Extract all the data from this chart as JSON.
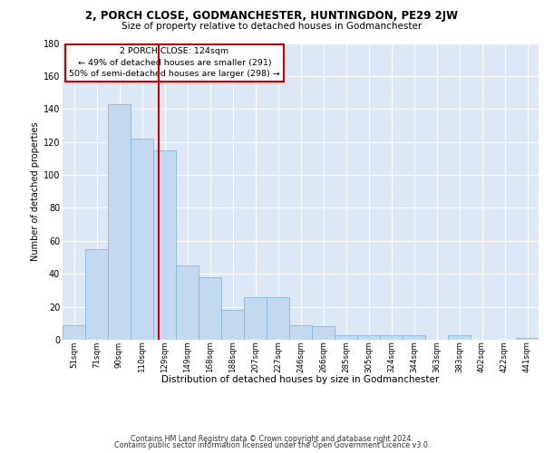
{
  "title1": "2, PORCH CLOSE, GODMANCHESTER, HUNTINGDON, PE29 2JW",
  "title2": "Size of property relative to detached houses in Godmanchester",
  "xlabel": "Distribution of detached houses by size in Godmanchester",
  "ylabel": "Number of detached properties",
  "categories": [
    "51sqm",
    "71sqm",
    "90sqm",
    "110sqm",
    "129sqm",
    "149sqm",
    "168sqm",
    "188sqm",
    "207sqm",
    "227sqm",
    "246sqm",
    "266sqm",
    "285sqm",
    "305sqm",
    "324sqm",
    "344sqm",
    "363sqm",
    "383sqm",
    "402sqm",
    "422sqm",
    "441sqm"
  ],
  "values": [
    9,
    55,
    143,
    122,
    115,
    45,
    38,
    18,
    26,
    26,
    9,
    8,
    3,
    3,
    3,
    3,
    0,
    3,
    0,
    0,
    1
  ],
  "bar_color": "#c2d9f0",
  "bar_edge_color": "#7aafd4",
  "vline_color": "#cc0000",
  "annotation_line1": "2 PORCH CLOSE: 124sqm",
  "annotation_line2": "← 49% of detached houses are smaller (291)",
  "annotation_line3": "50% of semi-detached houses are larger (298) →",
  "annotation_box_edge_color": "#cc0000",
  "bg_color": "#dde8f6",
  "grid_color": "white",
  "ylim_max": 180,
  "ytick_step": 20,
  "footer1": "Contains HM Land Registry data © Crown copyright and database right 2024.",
  "footer2": "Contains public sector information licensed under the Open Government Licence v3.0."
}
